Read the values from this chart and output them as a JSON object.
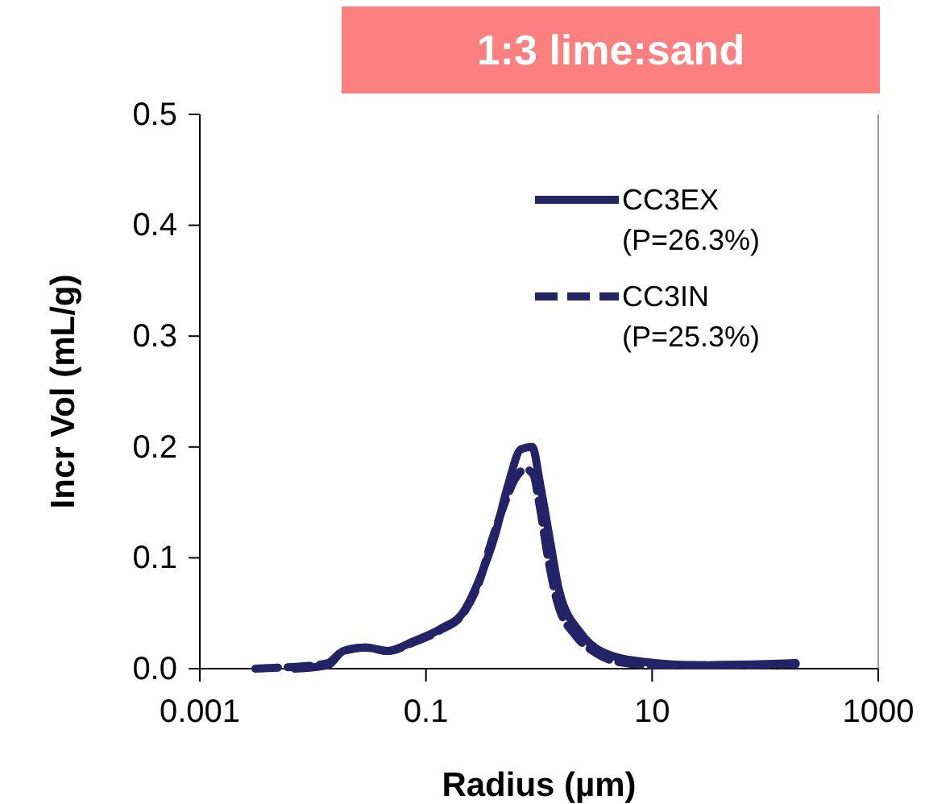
{
  "chart_data": {
    "type": "line",
    "title": "1:3 lime:sand",
    "xlabel": "Radius (µm)",
    "ylabel": "Incr Vol (mL/g)",
    "log": "x",
    "xlim": [
      0.001,
      1000
    ],
    "xticks": [
      0.001,
      0.1,
      10,
      1000
    ],
    "ylim": [
      0,
      0.5
    ],
    "yticks": [
      {
        "value": 0,
        "label": "0.0"
      },
      0.1,
      0.2,
      0.3,
      0.4,
      0.5
    ],
    "legend": "top right",
    "grid": false,
    "marker": "none",
    "series": [
      {
        "name": "CC3EX\n(P=26.3%)",
        "color": "#232368",
        "line_style": "solid",
        "x": [
          0.0069,
          0.0135,
          0.0186,
          0.0295,
          0.0457,
          0.079,
          0.135,
          0.214,
          0.295,
          0.407,
          0.537,
          0.692,
          0.871,
          1.02,
          1.23,
          1.51,
          2.34,
          3.63,
          8.7,
          26,
          186
        ],
        "values": [
          0,
          0.003,
          0.016,
          0.019,
          0.016,
          0.025,
          0.036,
          0.051,
          0.08,
          0.12,
          0.167,
          0.198,
          0.2,
          0.167,
          0.12,
          0.07,
          0.032,
          0.015,
          0.006,
          0.003,
          0.005
        ]
      },
      {
        "name": "CC3IN\n(P=25.3%)",
        "color": "#232368",
        "line_style": "dashed",
        "x": [
          0.0031,
          0.005,
          0.0079,
          0.0135,
          0.0186,
          0.0295,
          0.0457,
          0.079,
          0.135,
          0.214,
          0.295,
          0.38,
          0.5,
          0.62,
          0.76,
          0.89,
          1.0,
          1.2,
          1.45,
          2.1,
          3.2,
          5,
          12,
          60,
          186
        ],
        "values": [
          0,
          0.001,
          0.002,
          0.005,
          0.016,
          0.019,
          0.016,
          0.024,
          0.035,
          0.05,
          0.078,
          0.115,
          0.15,
          0.172,
          0.18,
          0.175,
          0.15,
          0.1,
          0.06,
          0.03,
          0.014,
          0.006,
          0.003,
          0.003,
          0.004
        ]
      }
    ]
  }
}
